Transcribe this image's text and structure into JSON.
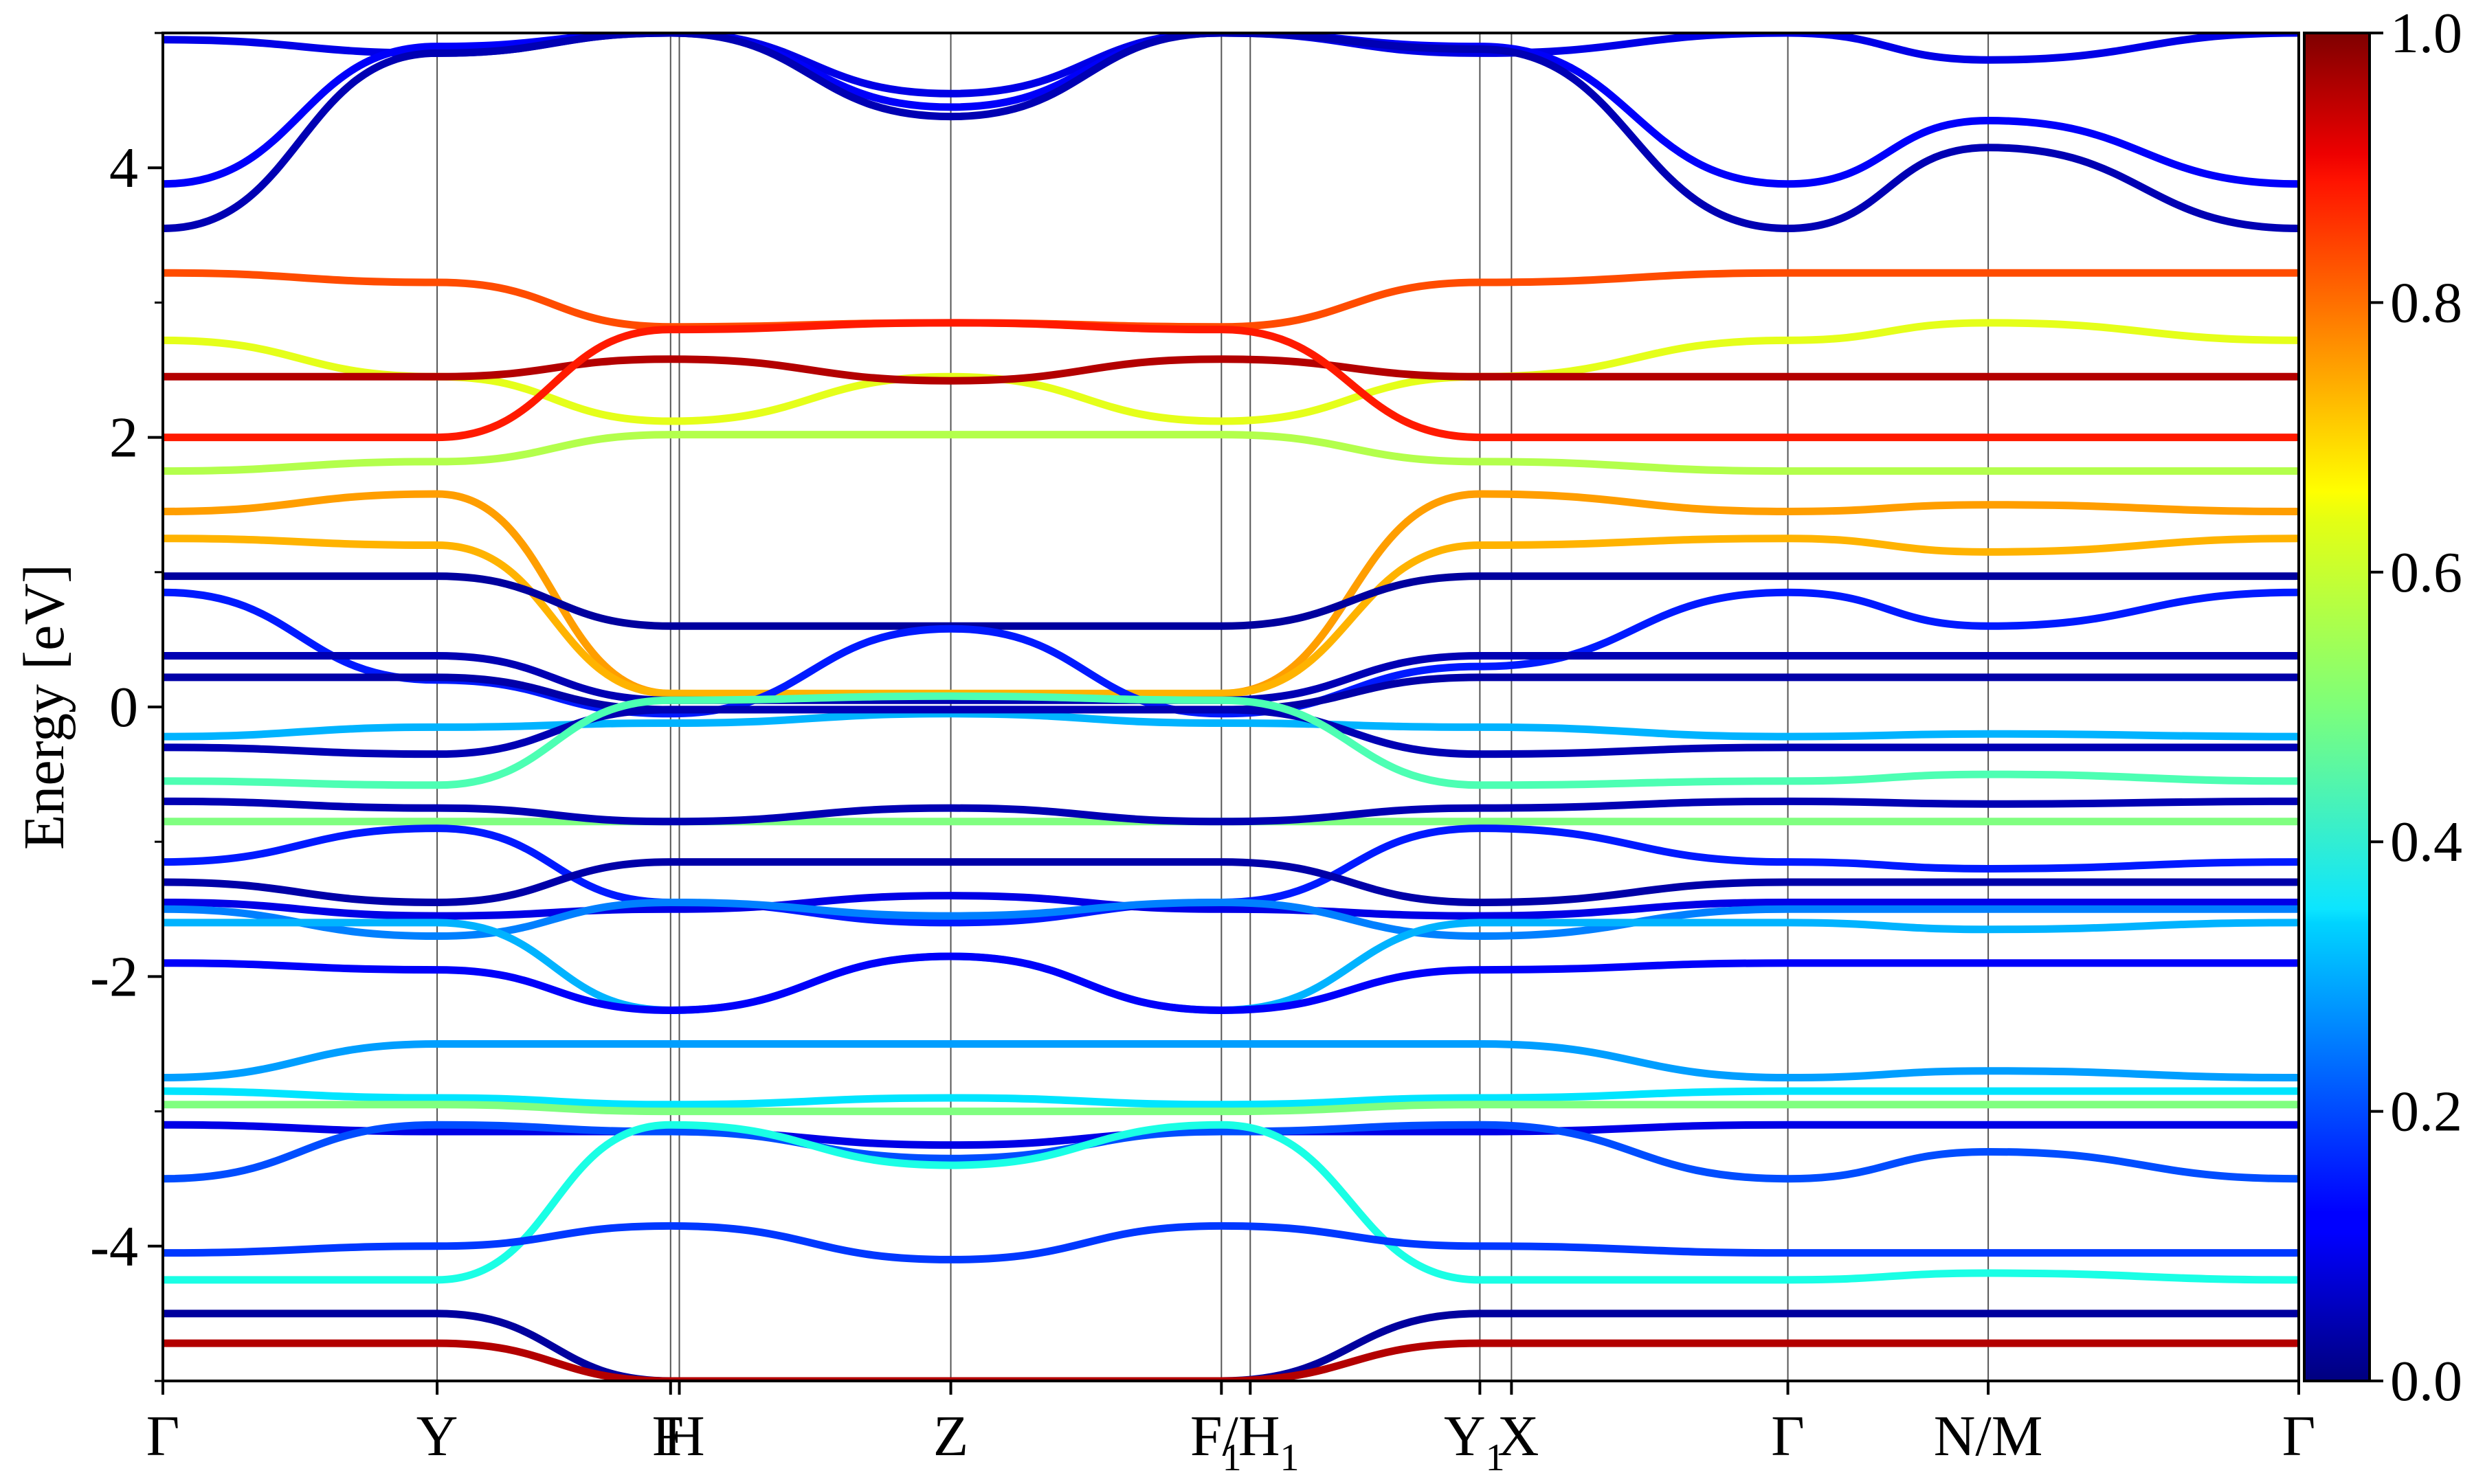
{
  "chart_data": {
    "type": "line",
    "ylabel": "Energy [eV]",
    "ylim": [
      -5,
      5
    ],
    "y_ticks": [
      "4",
      "2",
      "0",
      "-2",
      "-4"
    ],
    "y_tick_values": [
      4,
      2,
      0,
      -2,
      -4
    ],
    "k_path_positions": [
      0,
      0.1284,
      0.2377,
      0.2418,
      0.3689,
      0.4956,
      0.5091,
      0.6166,
      0.6314,
      0.7608,
      0.8546,
      1.0
    ],
    "x_tick_labels": [
      {
        "text": "Γ",
        "pos": 0.0
      },
      {
        "text": "Y",
        "pos": 0.1284
      },
      {
        "text": "F",
        "pos": 0.2365
      },
      {
        "text": "H",
        "pos": 0.244
      },
      {
        "text": "Z",
        "pos": 0.3689
      },
      {
        "text": "F",
        "pos": 0.493,
        "sub": "1"
      },
      {
        "text": "/H",
        "pos": 0.514,
        "sub": "1"
      },
      {
        "text": "Y",
        "pos": 0.614,
        "sub": "1"
      },
      {
        "text": "X",
        "pos": 0.6345
      },
      {
        "text": "Γ",
        "pos": 0.7608
      },
      {
        "text": "N/M",
        "pos": 0.8546
      },
      {
        "text": "Γ",
        "pos": 1.0
      }
    ],
    "colorbar": {
      "range": [
        0,
        1
      ],
      "ticks": [
        "1.0",
        "0.8",
        "0.6",
        "0.4",
        "0.2",
        "0.0"
      ],
      "tick_values": [
        1.0,
        0.8,
        0.6,
        0.4,
        0.2,
        0.0
      ],
      "colormap": "jet"
    },
    "bands": [
      {
        "x": [
          0,
          0.1284,
          0.2377,
          0.3689,
          0.4956,
          0.6166,
          0.7608,
          0.8546,
          1.0
        ],
        "y": [
          4.95,
          4.85,
          5.0,
          4.55,
          5.0,
          4.85,
          5.0,
          4.8,
          5.0
        ],
        "w": 0.1
      },
      {
        "x": [
          0,
          0.1284,
          0.2377,
          0.3689,
          0.4956,
          0.6166,
          0.7608,
          0.8546,
          1.0
        ],
        "y": [
          3.88,
          4.9,
          5.0,
          4.45,
          5.0,
          4.9,
          3.88,
          4.35,
          3.88
        ],
        "w": 0.12
      },
      {
        "x": [
          0,
          0.1284,
          0.2377,
          0.3689,
          0.4956,
          0.6166,
          0.7608,
          0.8546,
          1.0
        ],
        "y": [
          3.55,
          4.85,
          5.0,
          4.38,
          5.0,
          4.88,
          3.55,
          4.15,
          3.55
        ],
        "w": 0.05
      },
      {
        "x": [
          0,
          0.1284,
          0.2377,
          0.3689,
          0.4956,
          0.6166,
          0.7608,
          0.8546,
          1.0
        ],
        "y": [
          3.22,
          3.15,
          2.82,
          2.85,
          2.82,
          3.15,
          3.22,
          3.22,
          3.22
        ],
        "w": 0.8
      },
      {
        "x": [
          0,
          0.1284,
          0.2377,
          0.3689,
          0.4956,
          0.6166,
          0.7608,
          0.8546,
          1.0
        ],
        "y": [
          2.72,
          2.45,
          2.12,
          2.45,
          2.12,
          2.45,
          2.72,
          2.85,
          2.72
        ],
        "w": 0.6
      },
      {
        "x": [
          0,
          0.1284,
          0.2377,
          0.3689,
          0.4956,
          0.6166,
          0.7608,
          0.8546,
          1.0
        ],
        "y": [
          2.45,
          2.45,
          2.58,
          2.42,
          2.58,
          2.45,
          2.45,
          2.45,
          2.45
        ],
        "w": 0.95
      },
      {
        "x": [
          0,
          0.1284,
          0.2377,
          0.3689,
          0.4956,
          0.6166,
          0.7608,
          0.8546,
          1.0
        ],
        "y": [
          2.0,
          2.0,
          2.8,
          2.85,
          2.8,
          2.0,
          2.0,
          2.0,
          2.0
        ],
        "w": 0.85
      },
      {
        "x": [
          0,
          0.1284,
          0.2377,
          0.3689,
          0.4956,
          0.6166,
          0.7608,
          0.8546,
          1.0
        ],
        "y": [
          1.75,
          1.82,
          2.02,
          2.02,
          2.02,
          1.82,
          1.75,
          1.75,
          1.75
        ],
        "w": 0.55
      },
      {
        "x": [
          0,
          0.1284,
          0.2377,
          0.3689,
          0.4956,
          0.6166,
          0.7608,
          0.8546,
          1.0
        ],
        "y": [
          1.45,
          1.58,
          0.1,
          0.08,
          0.1,
          1.58,
          1.45,
          1.5,
          1.45
        ],
        "w": 0.72
      },
      {
        "x": [
          0,
          0.1284,
          0.2377,
          0.3689,
          0.4956,
          0.6166,
          0.7608,
          0.8546,
          1.0
        ],
        "y": [
          1.25,
          1.2,
          0.1,
          0.1,
          0.1,
          1.2,
          1.25,
          1.15,
          1.25
        ],
        "w": 0.7
      },
      {
        "x": [
          0,
          0.1284,
          0.2377,
          0.3689,
          0.4956,
          0.6166,
          0.7608,
          0.8546,
          1.0
        ],
        "y": [
          0.97,
          0.97,
          0.6,
          0.6,
          0.6,
          0.97,
          0.97,
          0.97,
          0.97
        ],
        "w": 0.03
      },
      {
        "x": [
          0,
          0.1284,
          0.2377,
          0.3689,
          0.4956,
          0.6166,
          0.7608,
          0.8546,
          1.0
        ],
        "y": [
          0.85,
          0.2,
          -0.05,
          0.58,
          -0.05,
          0.3,
          0.85,
          0.6,
          0.85
        ],
        "w": 0.15
      },
      {
        "x": [
          0,
          0.1284,
          0.2377,
          0.3689,
          0.4956,
          0.6166,
          0.7608,
          0.8546,
          1.0
        ],
        "y": [
          0.38,
          0.38,
          0.05,
          0.05,
          0.05,
          0.38,
          0.38,
          0.38,
          0.38
        ],
        "w": 0.05
      },
      {
        "x": [
          0,
          0.1284,
          0.2377,
          0.3689,
          0.4956,
          0.6166,
          0.7608,
          0.8546,
          1.0
        ],
        "y": [
          0.22,
          0.22,
          -0.02,
          -0.02,
          -0.02,
          0.22,
          0.22,
          0.22,
          0.22
        ],
        "w": 0.04
      },
      {
        "x": [
          0,
          0.1284,
          0.2377,
          0.3689,
          0.4956,
          0.6166,
          0.7608,
          0.8546,
          1.0
        ],
        "y": [
          -0.22,
          -0.15,
          -0.12,
          -0.05,
          -0.12,
          -0.15,
          -0.22,
          -0.2,
          -0.22
        ],
        "w": 0.3
      },
      {
        "x": [
          0,
          0.1284,
          0.2377,
          0.3689,
          0.4956,
          0.6166,
          0.7608,
          0.8546,
          1.0
        ],
        "y": [
          -0.3,
          -0.35,
          -0.02,
          -0.02,
          -0.02,
          -0.35,
          -0.3,
          -0.3,
          -0.3
        ],
        "w": 0.05
      },
      {
        "x": [
          0,
          0.1284,
          0.2377,
          0.3689,
          0.4956,
          0.6166,
          0.7608,
          0.8546,
          1.0
        ],
        "y": [
          -0.55,
          -0.58,
          0.05,
          0.08,
          0.05,
          -0.58,
          -0.55,
          -0.5,
          -0.55
        ],
        "w": 0.45
      },
      {
        "x": [
          0,
          0.1284,
          0.2377,
          0.3689,
          0.4956,
          0.6166,
          0.7608,
          0.8546,
          1.0
        ],
        "y": [
          -0.85,
          -0.85,
          -0.85,
          -0.85,
          -0.85,
          -0.85,
          -0.85,
          -0.85,
          -0.85
        ],
        "w": 0.5
      },
      {
        "x": [
          0,
          0.1284,
          0.2377,
          0.3689,
          0.4956,
          0.6166,
          0.7608,
          0.8546,
          1.0
        ],
        "y": [
          -0.7,
          -0.75,
          -0.85,
          -0.75,
          -0.85,
          -0.75,
          -0.7,
          -0.72,
          -0.7
        ],
        "w": 0.05
      },
      {
        "x": [
          0,
          0.1284,
          0.2377,
          0.3689,
          0.4956,
          0.6166,
          0.7608,
          0.8546,
          1.0
        ],
        "y": [
          -1.15,
          -0.9,
          -1.45,
          -1.6,
          -1.45,
          -0.9,
          -1.15,
          -1.2,
          -1.15
        ],
        "w": 0.15
      },
      {
        "x": [
          0,
          0.1284,
          0.2377,
          0.3689,
          0.4956,
          0.6166,
          0.7608,
          0.8546,
          1.0
        ],
        "y": [
          -1.3,
          -1.45,
          -1.15,
          -1.15,
          -1.15,
          -1.45,
          -1.3,
          -1.3,
          -1.3
        ],
        "w": 0.04
      },
      {
        "x": [
          0,
          0.1284,
          0.2377,
          0.3689,
          0.4956,
          0.6166,
          0.7608,
          0.8546,
          1.0
        ],
        "y": [
          -1.45,
          -1.55,
          -1.5,
          -1.4,
          -1.5,
          -1.55,
          -1.45,
          -1.45,
          -1.45
        ],
        "w": 0.1
      },
      {
        "x": [
          0,
          0.1284,
          0.2377,
          0.3689,
          0.4956,
          0.6166,
          0.7608,
          0.8546,
          1.0
        ],
        "y": [
          -1.5,
          -1.7,
          -1.45,
          -1.55,
          -1.45,
          -1.7,
          -1.5,
          -1.5,
          -1.5
        ],
        "w": 0.25
      },
      {
        "x": [
          0,
          0.1284,
          0.2377,
          0.3689,
          0.4956,
          0.6166,
          0.7608,
          0.8546,
          1.0
        ],
        "y": [
          -1.6,
          -1.6,
          -2.25,
          -1.85,
          -2.25,
          -1.6,
          -1.6,
          -1.65,
          -1.6
        ],
        "w": 0.3
      },
      {
        "x": [
          0,
          0.1284,
          0.2377,
          0.3689,
          0.4956,
          0.6166,
          0.7608,
          0.8546,
          1.0
        ],
        "y": [
          -1.9,
          -1.95,
          -2.25,
          -1.85,
          -2.25,
          -1.95,
          -1.9,
          -1.9,
          -1.9
        ],
        "w": 0.12
      },
      {
        "x": [
          0,
          0.1284,
          0.2377,
          0.3689,
          0.4956,
          0.6166,
          0.7608,
          0.8546,
          1.0
        ],
        "y": [
          -2.75,
          -2.5,
          -2.5,
          -2.5,
          -2.5,
          -2.5,
          -2.75,
          -2.7,
          -2.75
        ],
        "w": 0.28
      },
      {
        "x": [
          0,
          0.1284,
          0.2377,
          0.3689,
          0.4956,
          0.6166,
          0.7608,
          0.8546,
          1.0
        ],
        "y": [
          -2.85,
          -2.9,
          -2.95,
          -2.9,
          -2.95,
          -2.9,
          -2.85,
          -2.85,
          -2.85
        ],
        "w": 0.35
      },
      {
        "x": [
          0,
          0.1284,
          0.2377,
          0.3689,
          0.4956,
          0.6166,
          0.7608,
          0.8546,
          1.0
        ],
        "y": [
          -2.95,
          -2.95,
          -3.0,
          -3.0,
          -3.0,
          -2.95,
          -2.95,
          -2.95,
          -2.95
        ],
        "w": 0.5
      },
      {
        "x": [
          0,
          0.1284,
          0.2377,
          0.3689,
          0.4956,
          0.6166,
          0.7608,
          0.8546,
          1.0
        ],
        "y": [
          -3.1,
          -3.15,
          -3.15,
          -3.25,
          -3.15,
          -3.15,
          -3.1,
          -3.1,
          -3.1
        ],
        "w": 0.1
      },
      {
        "x": [
          0,
          0.1284,
          0.2377,
          0.3689,
          0.4956,
          0.6166,
          0.7608,
          0.8546,
          1.0
        ],
        "y": [
          -3.5,
          -3.1,
          -3.15,
          -3.35,
          -3.15,
          -3.1,
          -3.5,
          -3.3,
          -3.5
        ],
        "w": 0.2
      },
      {
        "x": [
          0,
          0.1284,
          0.2377,
          0.3689,
          0.4956,
          0.6166,
          0.7608,
          0.8546,
          1.0
        ],
        "y": [
          -4.25,
          -4.25,
          -3.1,
          -3.4,
          -3.1,
          -4.25,
          -4.25,
          -4.2,
          -4.25
        ],
        "w": 0.4
      },
      {
        "x": [
          0,
          0.1284,
          0.2377,
          0.3689,
          0.4956,
          0.6166,
          0.7608,
          0.8546,
          1.0
        ],
        "y": [
          -4.05,
          -4.0,
          -3.85,
          -4.1,
          -3.85,
          -4.0,
          -4.05,
          -4.05,
          -4.05
        ],
        "w": 0.18
      },
      {
        "x": [
          0,
          0.1284,
          0.2377,
          0.3689,
          0.4956,
          0.6166,
          0.7608,
          0.8546,
          1.0
        ],
        "y": [
          -4.5,
          -4.5,
          -5.0,
          -5.0,
          -5.0,
          -4.5,
          -4.5,
          -4.5,
          -4.5
        ],
        "w": 0.03
      },
      {
        "x": [
          0,
          0.1284,
          0.2377,
          0.3689,
          0.4956,
          0.6166,
          0.7608,
          0.8546,
          1.0
        ],
        "y": [
          -4.72,
          -4.72,
          -5.0,
          -5.0,
          -5.0,
          -4.72,
          -4.72,
          -4.72,
          -4.72
        ],
        "w": 0.95
      }
    ]
  }
}
